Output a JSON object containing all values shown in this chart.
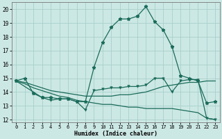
{
  "xlabel": "Humidex (Indice chaleur)",
  "x_ticks": [
    0,
    1,
    2,
    3,
    4,
    5,
    6,
    7,
    8,
    9,
    10,
    11,
    12,
    13,
    14,
    15,
    16,
    17,
    18,
    19,
    20,
    21,
    22,
    23
  ],
  "ylim": [
    11.8,
    20.5
  ],
  "yticks": [
    12,
    13,
    14,
    15,
    16,
    17,
    18,
    19,
    20
  ],
  "bg_color": "#cce8e4",
  "grid_color": "#a8d0cc",
  "line_color": "#1a6b5a",
  "series1": [
    14.8,
    15.0,
    13.9,
    13.6,
    13.6,
    13.5,
    13.5,
    13.3,
    13.3,
    15.8,
    17.6,
    18.7,
    19.3,
    19.3,
    19.5,
    20.2,
    19.1,
    18.5,
    17.3,
    15.2,
    15.0,
    14.8,
    13.2,
    13.3
  ],
  "series2_x": [
    0,
    3,
    4,
    5,
    6,
    7,
    8,
    9,
    10,
    11,
    12,
    13,
    14,
    15,
    16,
    17,
    18,
    19,
    20,
    21,
    22,
    23
  ],
  "series2": [
    14.8,
    13.6,
    13.4,
    13.5,
    13.5,
    13.3,
    12.7,
    14.1,
    14.2,
    14.3,
    14.3,
    14.4,
    14.4,
    14.5,
    15.0,
    15.0,
    14.0,
    14.8,
    14.9,
    14.9,
    12.1,
    12.0
  ],
  "series3": [
    14.8,
    14.7,
    14.5,
    14.3,
    14.1,
    14.0,
    13.9,
    13.8,
    13.7,
    13.7,
    13.7,
    13.7,
    13.8,
    13.8,
    13.9,
    14.0,
    14.2,
    14.4,
    14.5,
    14.6,
    14.7,
    14.7,
    14.8,
    14.8
  ],
  "series4": [
    14.8,
    14.6,
    14.3,
    14.1,
    13.9,
    13.7,
    13.6,
    13.4,
    13.3,
    13.2,
    13.1,
    13.1,
    13.0,
    12.9,
    12.9,
    12.8,
    12.8,
    12.8,
    12.8,
    12.7,
    12.6,
    12.5,
    12.1,
    12.0
  ]
}
